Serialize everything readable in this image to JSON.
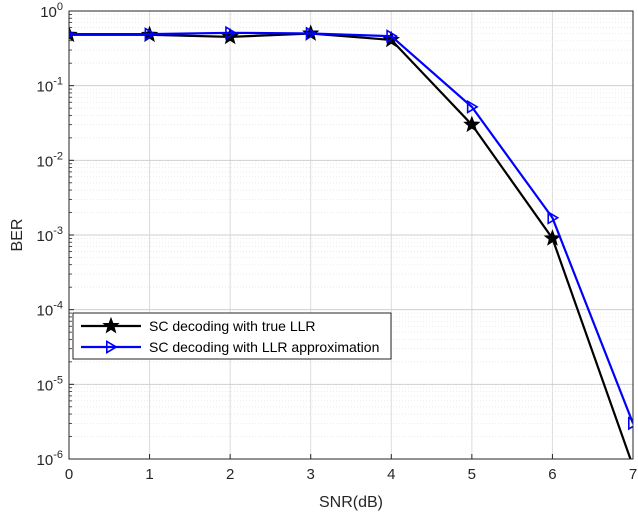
{
  "chart_data": {
    "type": "line",
    "title": "",
    "xlabel": "SNR(dB)",
    "ylabel": "BER",
    "xlim": [
      0,
      7
    ],
    "ylim": [
      1e-06,
      1
    ],
    "yscale": "log",
    "grid": true,
    "minor_grid": true,
    "legend_position": "lower-left",
    "x_ticks": [
      0,
      1,
      2,
      3,
      4,
      5,
      6,
      7
    ],
    "x_tick_labels": [
      "0",
      "1",
      "2",
      "3",
      "4",
      "5",
      "6",
      "7"
    ],
    "y_ticks": [
      {
        "value": 1,
        "base": "10",
        "exp": "0"
      },
      {
        "value": 0.1,
        "base": "10",
        "exp": "-1"
      },
      {
        "value": 0.01,
        "base": "10",
        "exp": "-2"
      },
      {
        "value": 0.001,
        "base": "10",
        "exp": "-3"
      },
      {
        "value": 0.0001,
        "base": "10",
        "exp": "-4"
      },
      {
        "value": 1e-05,
        "base": "10",
        "exp": "-5"
      },
      {
        "value": 1e-06,
        "base": "10",
        "exp": "-6"
      }
    ],
    "series": [
      {
        "name": "SC decoding with true LLR",
        "color": "#000000",
        "marker": "star",
        "x": [
          0,
          1,
          2,
          3,
          4,
          5,
          6,
          7
        ],
        "y": [
          0.48,
          0.48,
          0.45,
          0.5,
          0.41,
          0.03,
          0.0009,
          8e-07
        ]
      },
      {
        "name": "SC decoding with LLR approximation",
        "color": "#0000ff",
        "marker": "triangle-right",
        "x": [
          0,
          1,
          2,
          3,
          4,
          5,
          6,
          7
        ],
        "y": [
          0.49,
          0.49,
          0.51,
          0.5,
          0.46,
          0.052,
          0.0017,
          3e-06
        ]
      }
    ]
  }
}
